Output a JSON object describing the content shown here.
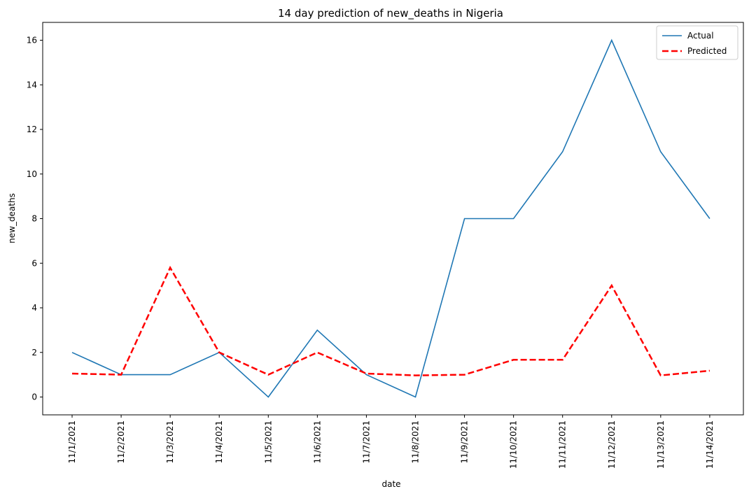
{
  "chart_data": {
    "type": "line",
    "title": "14 day prediction of new_deaths in Nigeria",
    "xlabel": "date",
    "ylabel": "new_deaths",
    "categories": [
      "11/1/2021",
      "11/2/2021",
      "11/3/2021",
      "11/4/2021",
      "11/5/2021",
      "11/6/2021",
      "11/7/2021",
      "11/8/2021",
      "11/9/2021",
      "11/10/2021",
      "11/11/2021",
      "11/12/2021",
      "11/13/2021",
      "11/14/2021"
    ],
    "series": [
      {
        "name": "Actual",
        "values": [
          2,
          1,
          1,
          2,
          0,
          3,
          1,
          0,
          8,
          8,
          11,
          16,
          11,
          8
        ],
        "color": "#1f77b4",
        "style": "solid"
      },
      {
        "name": "Predicted",
        "values": [
          1.05,
          1.0,
          5.8,
          2.0,
          1.0,
          2.0,
          1.05,
          0.97,
          1.0,
          1.67,
          1.67,
          5.0,
          0.97,
          1.18
        ],
        "color": "#ff0000",
        "style": "dashed"
      }
    ],
    "ylim": [
      -0.8,
      16.8
    ],
    "yticks": [
      0,
      2,
      4,
      6,
      8,
      10,
      12,
      14,
      16
    ],
    "grid": false,
    "legend_position": "top-right"
  }
}
